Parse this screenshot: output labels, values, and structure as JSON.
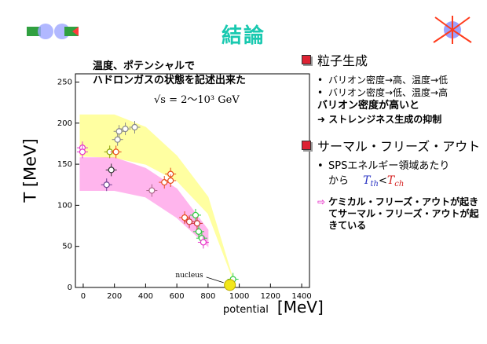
{
  "slide": {
    "title": "結論",
    "accent_title_color": "#19c9b0"
  },
  "plot_note": {
    "line1": "温度、ポテンシャルで",
    "line2": "ハドロンガスの状態を記述出来た",
    "formula": "√s = 2〜10³ GeV"
  },
  "axes": {
    "ylabel": "T [MeV]",
    "xlabel_small": "potential",
    "xlabel_big": "[MeV]",
    "nucleus_label": "nucleus"
  },
  "chart_data": {
    "type": "scatter",
    "xlim": [
      -50,
      1450
    ],
    "ylim": [
      0,
      260
    ],
    "xticks": [
      0,
      200,
      400,
      600,
      800,
      1000,
      1200,
      1400
    ],
    "yticks": [
      0,
      50,
      100,
      150,
      200,
      250
    ],
    "bands": [
      {
        "color": "#ffff55",
        "upper": [
          [
            -20,
            210
          ],
          [
            200,
            210
          ],
          [
            400,
            195
          ],
          [
            600,
            160
          ],
          [
            800,
            110
          ],
          [
            960,
            10
          ]
        ],
        "lower": [
          [
            960,
            10
          ],
          [
            800,
            90
          ],
          [
            600,
            130
          ],
          [
            400,
            150
          ],
          [
            200,
            158
          ],
          [
            -20,
            160
          ]
        ]
      },
      {
        "color": "#ff7ae0",
        "upper": [
          [
            -20,
            158
          ],
          [
            200,
            158
          ],
          [
            400,
            145
          ],
          [
            600,
            120
          ],
          [
            800,
            70
          ]
        ],
        "lower": [
          [
            800,
            50
          ],
          [
            600,
            85
          ],
          [
            400,
            110
          ],
          [
            200,
            118
          ],
          [
            -20,
            118
          ]
        ]
      }
    ],
    "points": [
      {
        "x": -5,
        "y": 170,
        "c": "#e636c8"
      },
      {
        "x": -5,
        "y": 165,
        "c": "#e636c8"
      },
      {
        "x": 150,
        "y": 125,
        "c": "#6a3f8f"
      },
      {
        "x": 180,
        "y": 143,
        "c": "#333333"
      },
      {
        "x": 170,
        "y": 165,
        "c": "#8aa000"
      },
      {
        "x": 210,
        "y": 165,
        "c": "#e74c1c"
      },
      {
        "x": 220,
        "y": 180,
        "c": "#888888"
      },
      {
        "x": 230,
        "y": 190,
        "c": "#888888"
      },
      {
        "x": 270,
        "y": 193,
        "c": "#888888"
      },
      {
        "x": 330,
        "y": 195,
        "c": "#888888"
      },
      {
        "x": 440,
        "y": 118,
        "c": "#aa6688"
      },
      {
        "x": 520,
        "y": 128,
        "c": "#e74c1c"
      },
      {
        "x": 560,
        "y": 138,
        "c": "#e74c1c"
      },
      {
        "x": 560,
        "y": 130,
        "c": "#e74c1c"
      },
      {
        "x": 650,
        "y": 85,
        "c": "#e74c1c"
      },
      {
        "x": 680,
        "y": 80,
        "c": "#cc3333"
      },
      {
        "x": 720,
        "y": 88,
        "c": "#2ecc40"
      },
      {
        "x": 740,
        "y": 68,
        "c": "#2ecc40"
      },
      {
        "x": 760,
        "y": 60,
        "c": "#2ecc40"
      },
      {
        "x": 770,
        "y": 55,
        "c": "#e636c8"
      },
      {
        "x": 730,
        "y": 78,
        "c": "#cc3333"
      },
      {
        "x": 960,
        "y": 10,
        "c": "#2ecc40"
      }
    ],
    "nucleus": {
      "x": 940,
      "y": 3
    }
  },
  "right_panel": {
    "sec1": "粒子生成",
    "b1": "バリオン密度→高、温度→低",
    "b2": "バリオン密度→低、温度→高",
    "p1": "バリオン密度が高いと",
    "p2": "➜ ストレンジネス生成の抑制",
    "sec2": "サーマル・フリーズ・アウト",
    "b3a": "SPSエネルギー領域あたり",
    "b3b": "から",
    "tth": "T",
    "tth_sub": "th",
    "lt": "<",
    "tch": "T",
    "tch_sub": "ch",
    "note": "ケミカル・フリーズ・アウトが起きてサーマル・フリーズ・アウトが起きている"
  }
}
